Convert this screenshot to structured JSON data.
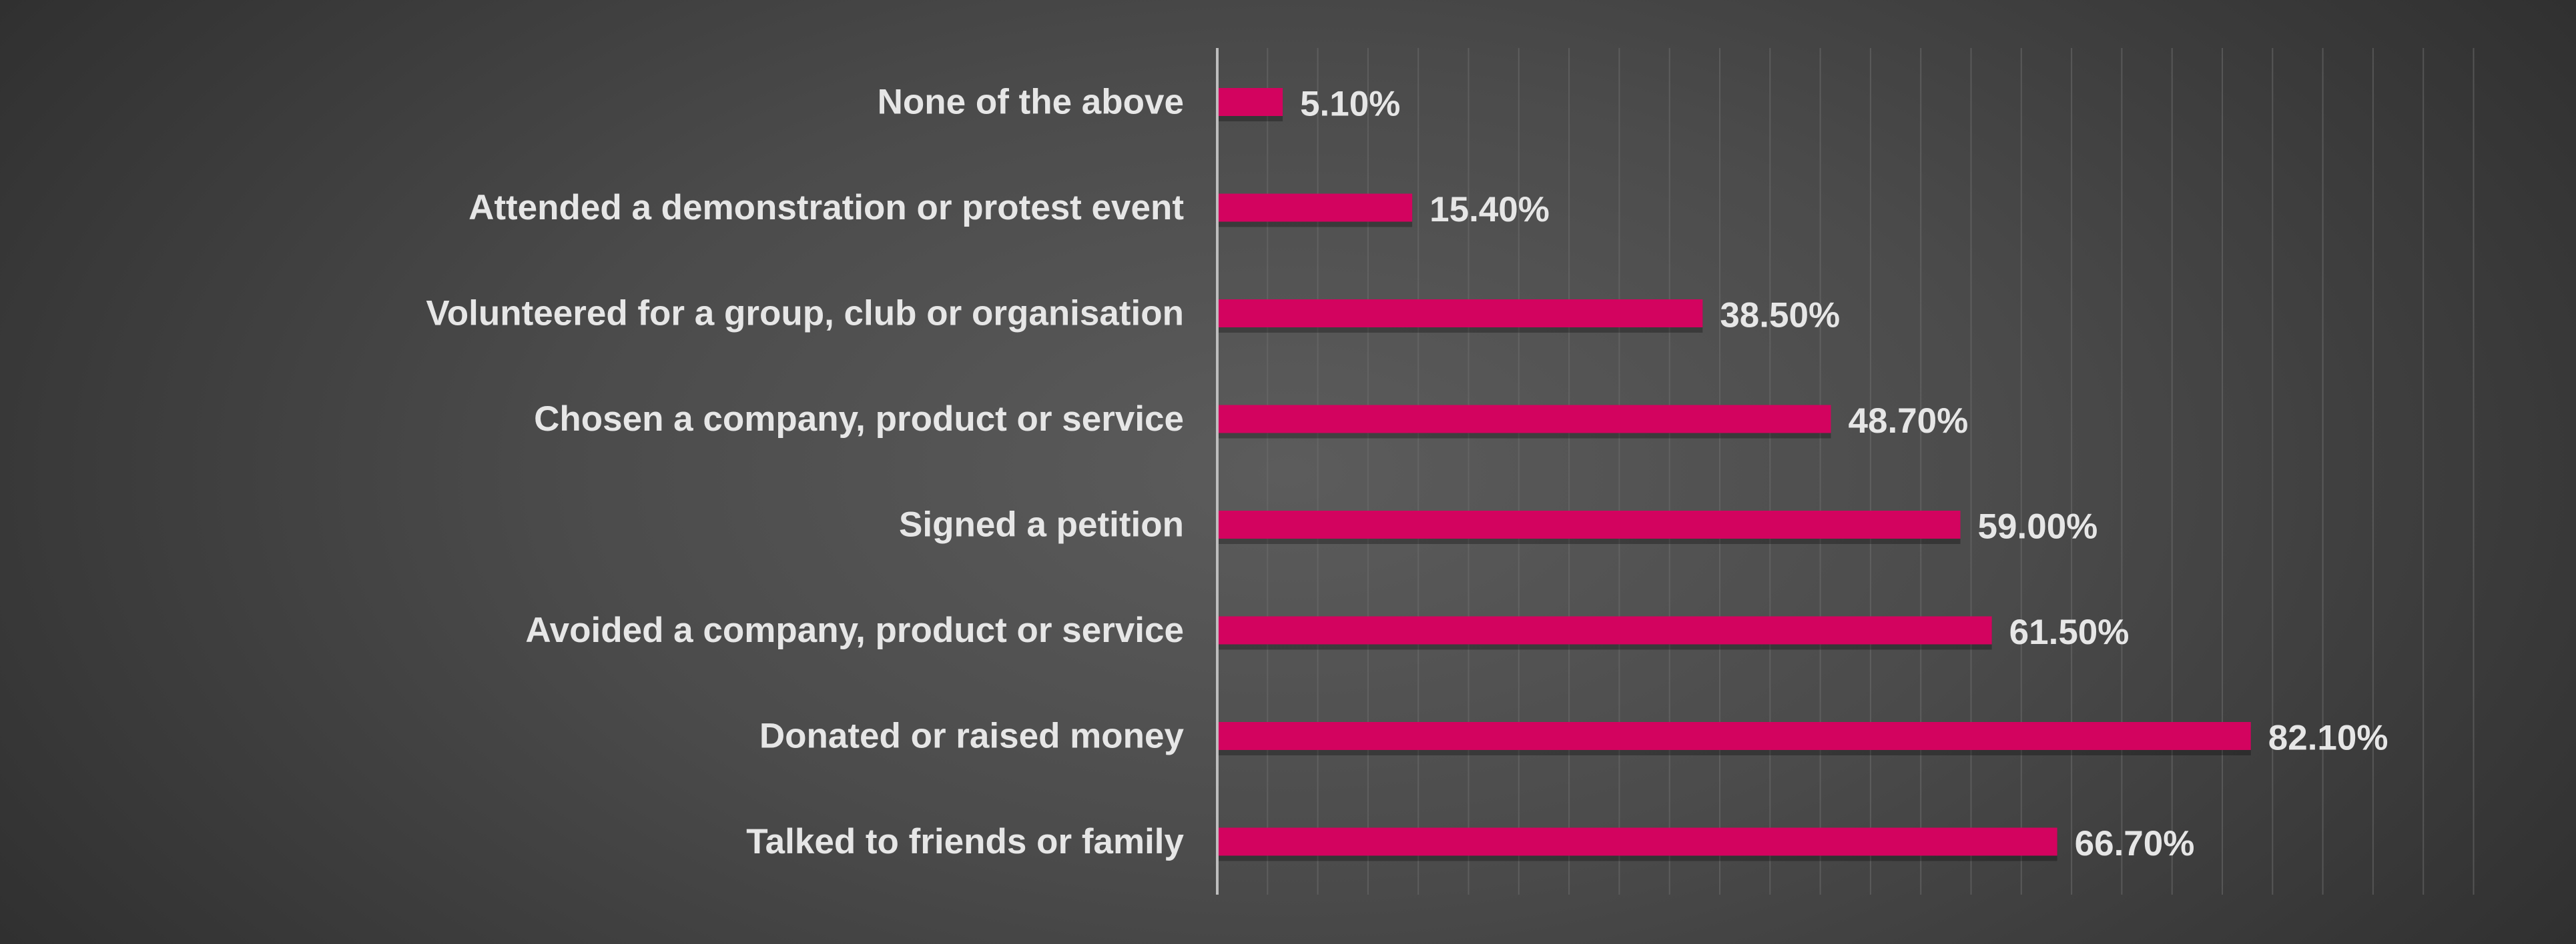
{
  "chart_data": {
    "type": "bar",
    "orientation": "horizontal",
    "title": "",
    "xlabel": "",
    "ylabel": "",
    "categories": [
      "None of the above",
      "Attended a demonstration or protest event",
      "Volunteered for a group, club or organisation",
      "Chosen a company, product or service",
      "Signed a petition",
      "Avoided a company, product or service",
      "Donated or raised money",
      "Talked to friends or family"
    ],
    "values": [
      5.1,
      15.4,
      38.5,
      48.7,
      59.0,
      61.5,
      82.1,
      66.7
    ],
    "value_labels": [
      "5.10%",
      "15.40%",
      "38.50%",
      "48.70%",
      "59.00%",
      "61.50%",
      "82.10%",
      "66.70%"
    ],
    "xlim": [
      0,
      100
    ],
    "grid": true,
    "legend": "none",
    "colors": {
      "bar": "#d3035f",
      "text": "#e6e6e6",
      "axis": "#bdbdbd",
      "grid": "#6e6e6e"
    }
  }
}
